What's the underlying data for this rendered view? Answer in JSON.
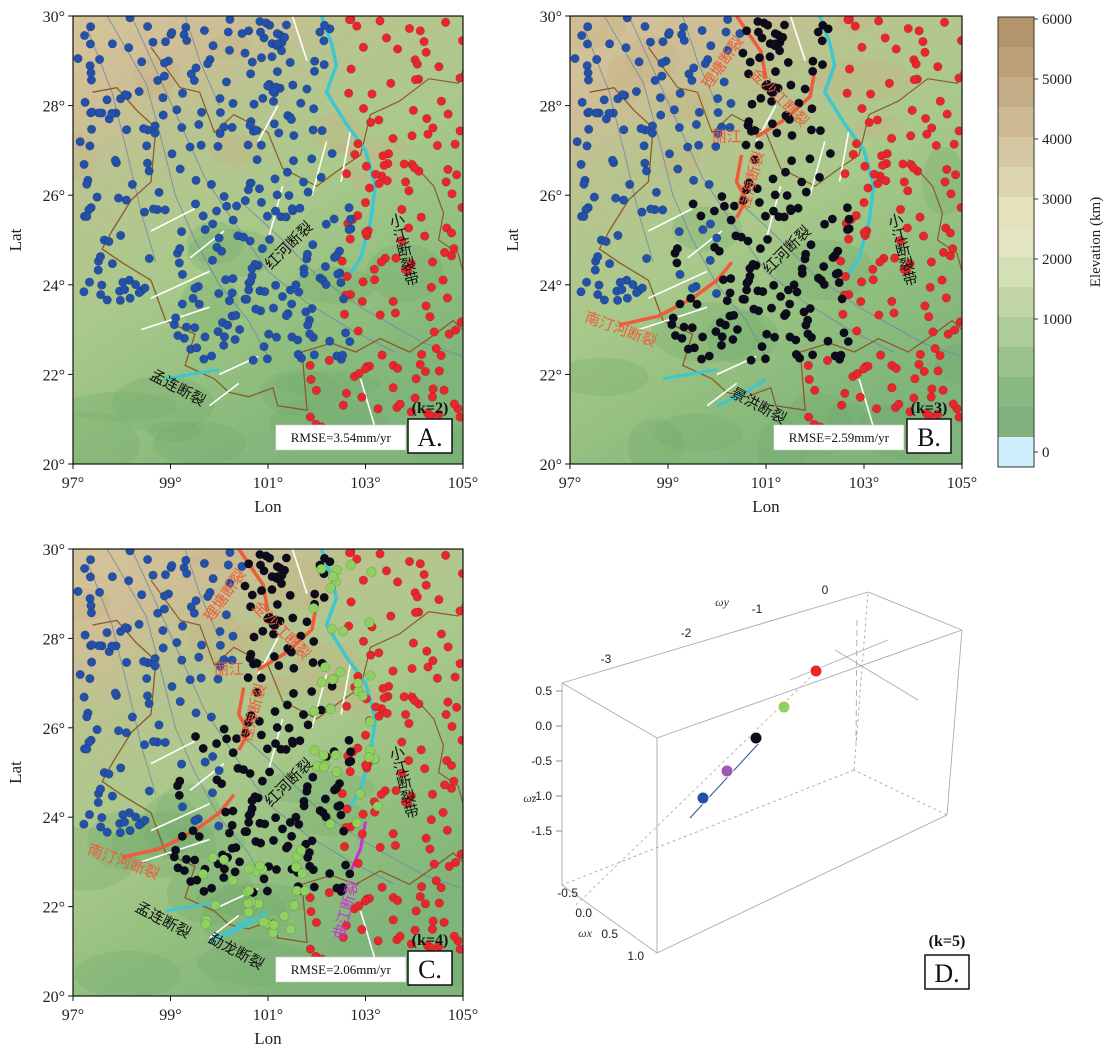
{
  "colors": {
    "red": "#e8262c",
    "blue": "#2350a8",
    "black": "#0c0c1c",
    "green": "#8fd061",
    "purple": "#9a59b3",
    "fault_red": "#ef5b3c",
    "fault_cyan": "#3fc7d0",
    "fault_magenta": "#d02ed6",
    "water": "#cdeefa"
  },
  "axes": {
    "lon_label": "Lon",
    "lat_label": "Lat",
    "lon_ticks": [
      "97°",
      "99°",
      "101°",
      "103°",
      "105°"
    ],
    "lat_ticks": [
      "20°",
      "22°",
      "24°",
      "26°",
      "28°",
      "30°"
    ],
    "lon_range": [
      97,
      105
    ],
    "lat_range": [
      20,
      30
    ]
  },
  "panels": [
    {
      "id": "A",
      "label": "A.",
      "k_label": "(k=2)",
      "rmse": "RMSE=3.54mm/yr",
      "fault_labels": [
        {
          "text": "小江断裂带",
          "lon": 103.6,
          "lat": 25.6,
          "color": "#111111",
          "vertical": true
        },
        {
          "text": "红河断裂",
          "lon": 101.5,
          "lat": 24.8,
          "color": "#111111",
          "rot": 45
        },
        {
          "text": "孟连断裂",
          "lon": 99.1,
          "lat": 21.6,
          "color": "#111111",
          "rot": -28
        }
      ]
    },
    {
      "id": "B",
      "label": "B.",
      "k_label": "(k=3)",
      "rmse": "RMSE=2.59mm/yr",
      "fault_labels": [
        {
          "text": "理塘断裂",
          "lon": 100.2,
          "lat": 28.9,
          "color": "#ef5b3c",
          "rot": 55
        },
        {
          "text": "金沙江断裂",
          "lon": 101.2,
          "lat": 28.1,
          "color": "#ef5b3c",
          "rot": -45
        },
        {
          "text": "丽江",
          "lon": 100.2,
          "lat": 27.2,
          "color": "#ef5b3c",
          "rot": 0
        },
        {
          "text": "程海断裂",
          "lon": 100.8,
          "lat": 26.3,
          "color": "#ef5b3c",
          "rot": 75
        },
        {
          "text": "小江断裂带",
          "lon": 103.6,
          "lat": 25.6,
          "color": "#111111",
          "vertical": true
        },
        {
          "text": "红河断裂",
          "lon": 101.5,
          "lat": 24.7,
          "color": "#111111",
          "rot": 45
        },
        {
          "text": "南汀河断裂",
          "lon": 98.0,
          "lat": 22.9,
          "color": "#ef5b3c",
          "rot": -20
        },
        {
          "text": "景洪断裂",
          "lon": 100.8,
          "lat": 21.2,
          "color": "#111111",
          "rot": -28
        }
      ]
    },
    {
      "id": "C",
      "label": "C.",
      "k_label": "(k=4)",
      "rmse": "RMSE=2.06mm/yr",
      "fault_labels": [
        {
          "text": "理塘断裂",
          "lon": 100.2,
          "lat": 28.9,
          "color": "#ef5b3c",
          "rot": 55
        },
        {
          "text": "金沙江断裂",
          "lon": 101.2,
          "lat": 28.1,
          "color": "#ef5b3c",
          "rot": -45
        },
        {
          "text": "丽江",
          "lon": 100.2,
          "lat": 27.2,
          "color": "#ef5b3c",
          "rot": 0
        },
        {
          "text": "程海断裂",
          "lon": 100.8,
          "lat": 26.3,
          "color": "#ef5b3c",
          "rot": 75
        },
        {
          "text": "小江断裂带",
          "lon": 103.6,
          "lat": 25.6,
          "color": "#111111",
          "vertical": true
        },
        {
          "text": "红河断裂",
          "lon": 101.5,
          "lat": 24.7,
          "color": "#111111",
          "rot": 45
        },
        {
          "text": "南汀河断裂",
          "lon": 98.0,
          "lat": 22.9,
          "color": "#ef5b3c",
          "rot": -20
        },
        {
          "text": "孟连断裂",
          "lon": 98.8,
          "lat": 21.6,
          "color": "#111111",
          "rot": -28
        },
        {
          "text": "勐龙断裂",
          "lon": 100.3,
          "lat": 20.9,
          "color": "#111111",
          "rot": -28
        },
        {
          "text": "曲江断裂",
          "lon": 102.7,
          "lat": 21.9,
          "color": "#d02ed6",
          "rot": 75
        }
      ]
    }
  ],
  "colorbar": {
    "title": "Elevation (km)",
    "ticks": [
      "6000",
      "5000",
      "4000",
      "3000",
      "2000",
      "1000",
      "0"
    ],
    "colors": [
      "#b2956a",
      "#bba078",
      "#c4ac86",
      "#cdba95",
      "#d6c7a3",
      "#ddd4b0",
      "#e6e1bd",
      "#e3e6c0",
      "#d3dfb5",
      "#c2d6a5",
      "#aecc98",
      "#9bc28c",
      "#8ab882",
      "#80b07c",
      "#cdeefa"
    ]
  },
  "panel_d": {
    "label": "D.",
    "k_label": "(k=5)",
    "axis_labels": {
      "wx": "ωx",
      "wy": "ωy",
      "wz": "ωz"
    },
    "wx_ticks": [
      "-0.5",
      "0.0",
      "0.5",
      "1.0"
    ],
    "wy_ticks": [
      "-3",
      "-2",
      "-1",
      "0"
    ],
    "wz_ticks": [
      "0.5",
      "0.0",
      "-0.5",
      "-1.0",
      "-1.5"
    ],
    "clusters": [
      {
        "color": "#2350a8"
      },
      {
        "color": "#9a59b3"
      },
      {
        "color": "#0c0c1c"
      },
      {
        "color": "#8fd061"
      },
      {
        "color": "#e8262c"
      }
    ]
  }
}
